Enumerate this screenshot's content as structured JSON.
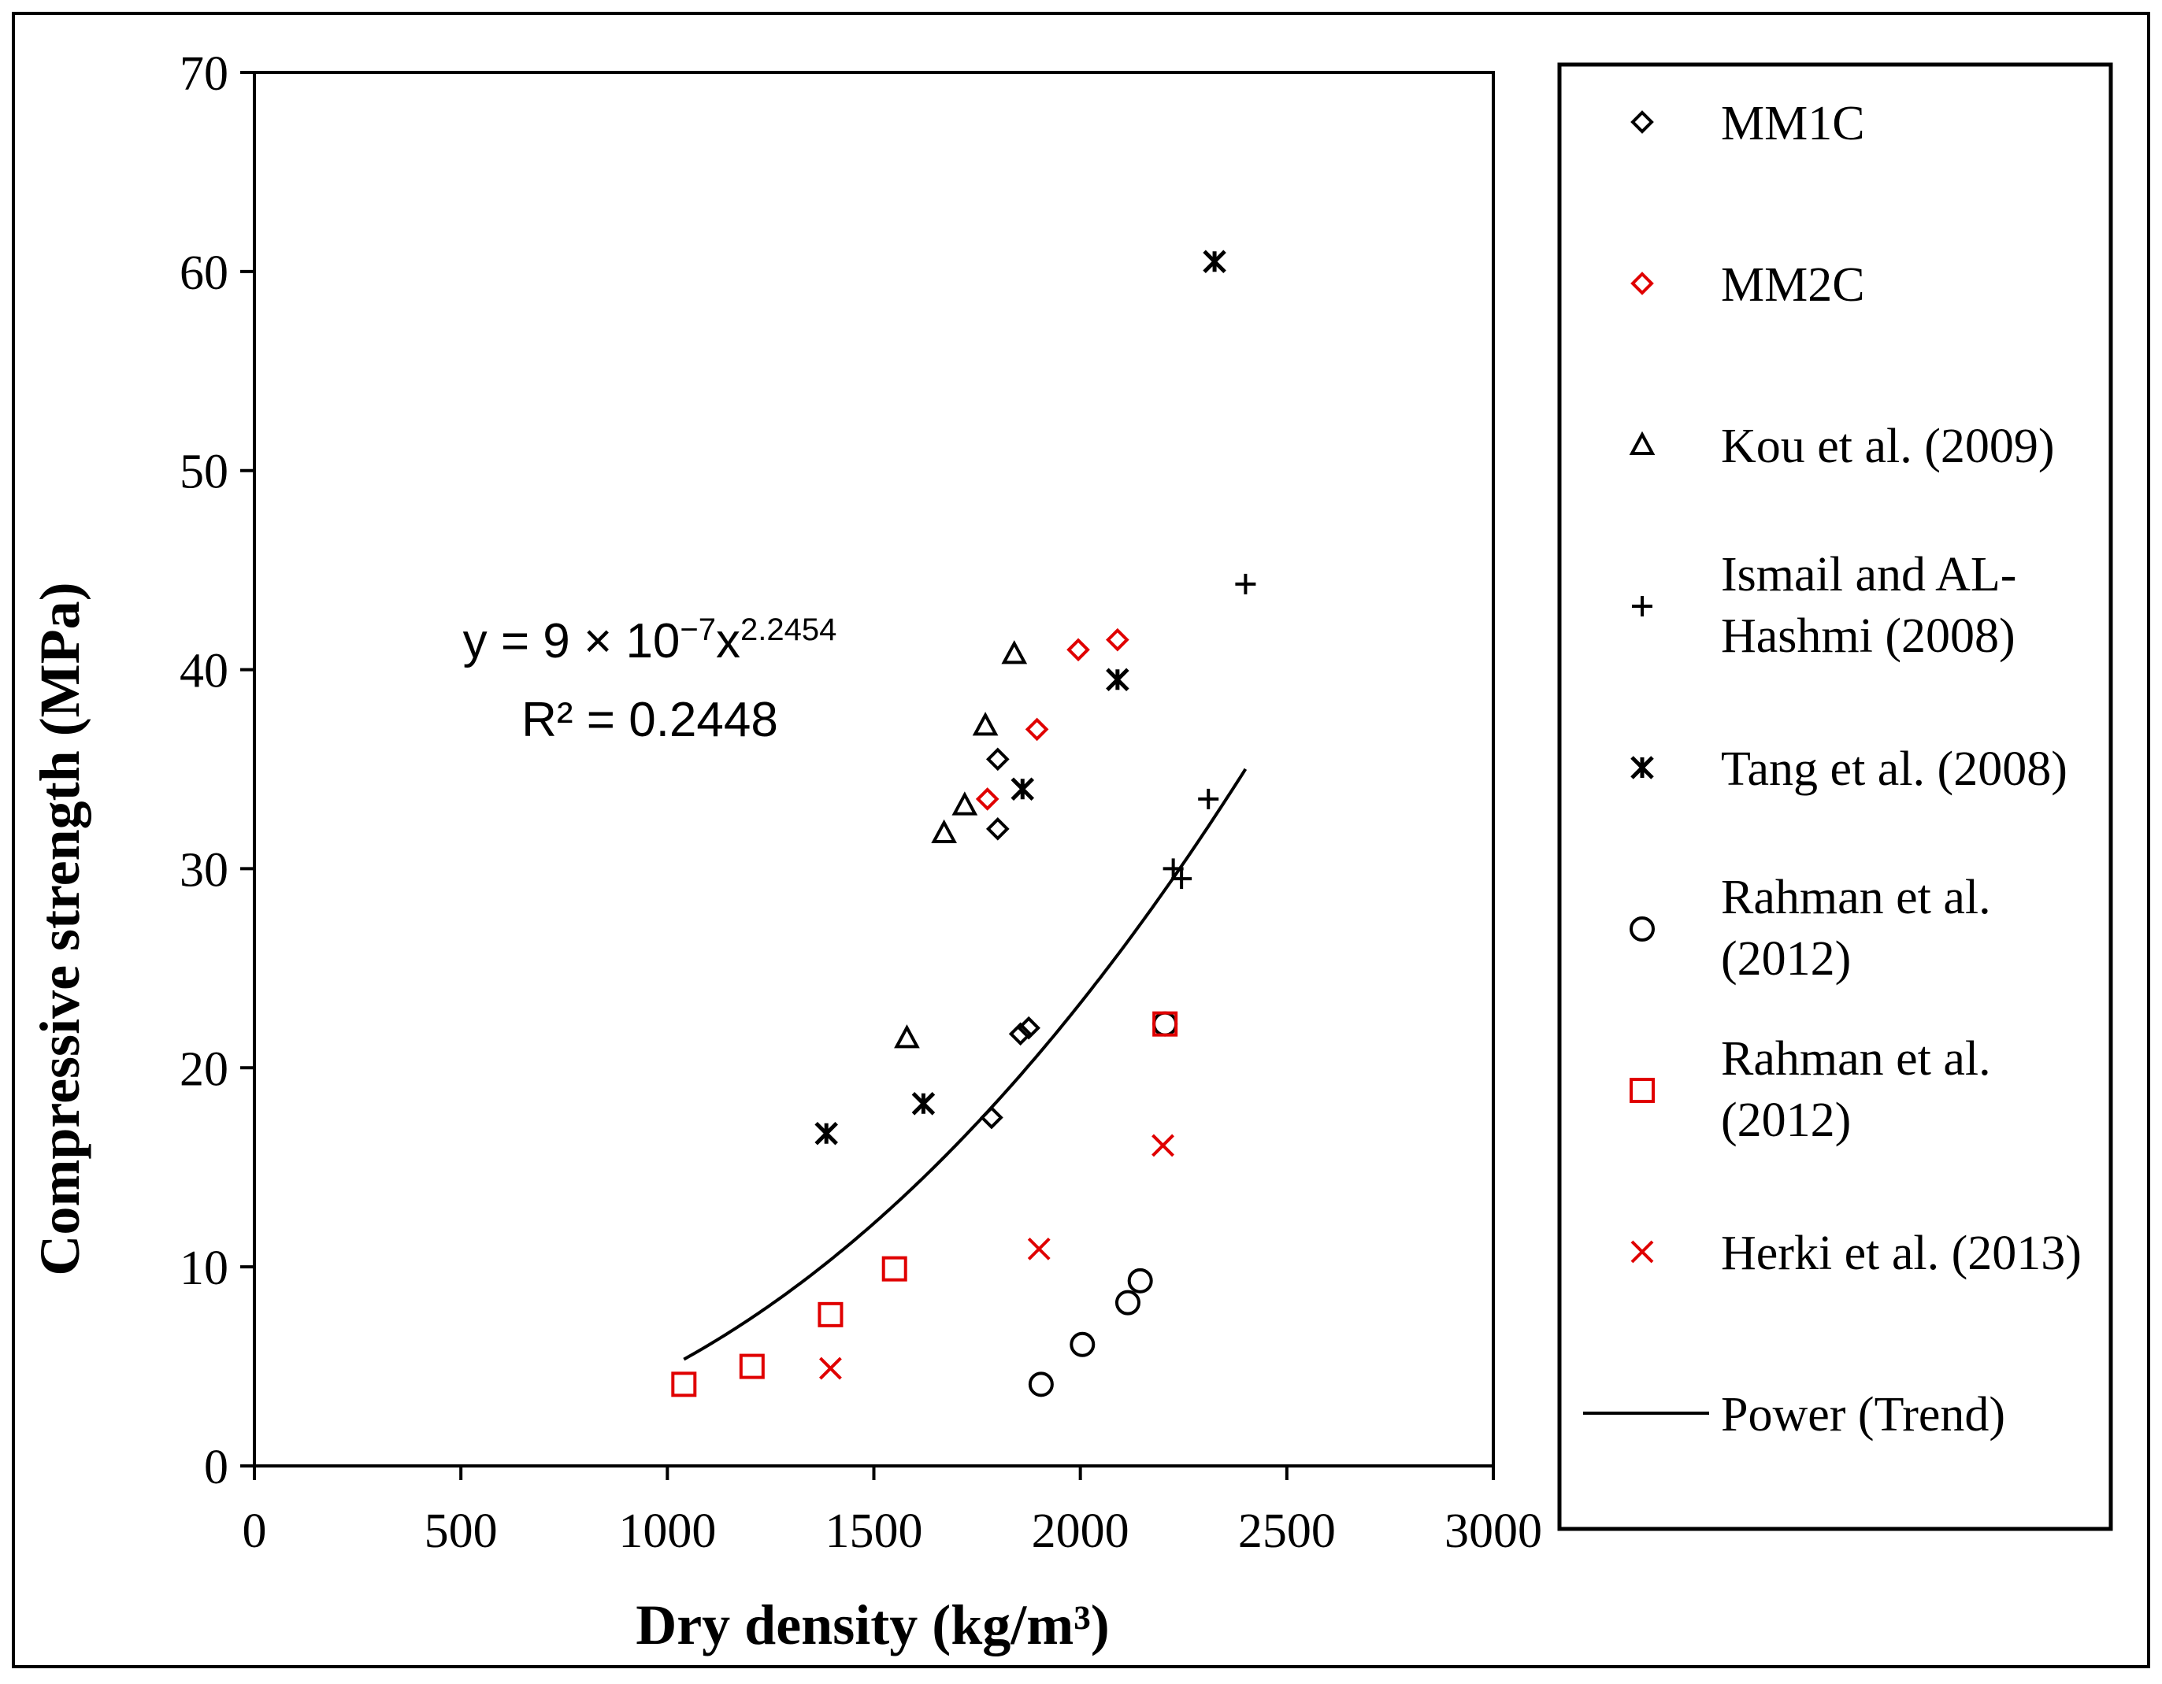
{
  "chart_data": {
    "type": "scatter",
    "xlabel": "Dry density (kg/m³)",
    "ylabel": "Compressive strength (MPa)",
    "xlim": [
      0,
      3000
    ],
    "ylim": [
      0,
      70
    ],
    "x_ticks": [
      0,
      500,
      1000,
      1500,
      2000,
      2500,
      3000
    ],
    "y_ticks": [
      0,
      10,
      20,
      30,
      40,
      50,
      60,
      70
    ],
    "x_tick_labels": [
      "0",
      "500",
      "1000",
      "1500",
      "2000",
      "2500",
      "3000"
    ],
    "y_tick_labels": [
      "0",
      "10",
      "20",
      "30",
      "40",
      "50",
      "60",
      "70"
    ],
    "grid": false,
    "legend_position": "right",
    "series": [
      {
        "name": "MM1C",
        "marker": "diamond",
        "color": "#000000",
        "points": [
          [
            1800,
            35.5
          ],
          [
            1800,
            32
          ],
          [
            1855,
            21.7
          ],
          [
            1875,
            22
          ],
          [
            1785,
            17.5
          ]
        ]
      },
      {
        "name": "MM2C",
        "marker": "diamond",
        "color": "#e00000",
        "points": [
          [
            2090,
            41.5
          ],
          [
            1995,
            41
          ],
          [
            1895,
            37
          ],
          [
            1775,
            33.5
          ]
        ]
      },
      {
        "name": "Kou et al. (2009)",
        "marker": "triangle",
        "color": "#000000",
        "points": [
          [
            1840,
            40.8
          ],
          [
            1770,
            37.2
          ],
          [
            1720,
            33.2
          ],
          [
            1670,
            31.8
          ],
          [
            1580,
            21.5
          ]
        ]
      },
      {
        "name": "Ismail and AL-Hashmi (2008)",
        "label_lines": [
          "Ismail and AL-",
          "Hashmi (2008)"
        ],
        "marker": "plus",
        "color": "#000000",
        "points": [
          [
            2400,
            44.3
          ],
          [
            2310,
            33.5
          ],
          [
            2225,
            30
          ],
          [
            2245,
            29.5
          ]
        ]
      },
      {
        "name": "Tang et al. (2008)",
        "marker": "asterisk",
        "color": "#000000",
        "points": [
          [
            2325,
            60.5
          ],
          [
            2090,
            39.5
          ],
          [
            1860,
            34
          ],
          [
            1620,
            18.2
          ],
          [
            1385,
            16.7
          ]
        ]
      },
      {
        "name": "Rahman et al. (2012)",
        "label_lines": [
          "Rahman et al.",
          "(2012)"
        ],
        "marker": "circle",
        "color": "#000000",
        "points": [
          [
            1905,
            4.1
          ],
          [
            2005,
            6.1
          ],
          [
            2115,
            8.2
          ],
          [
            2145,
            9.3
          ],
          [
            2205,
            22.2
          ]
        ]
      },
      {
        "name": "Rahman et al. (2012)",
        "label_lines": [
          "Rahman et al.",
          "(2012)"
        ],
        "marker": "square",
        "color": "#e00000",
        "points": [
          [
            1040,
            4.1
          ],
          [
            1205,
            5
          ],
          [
            1395,
            7.6
          ],
          [
            1550,
            9.9
          ],
          [
            2205,
            22.2
          ]
        ]
      },
      {
        "name": "Herki et al. (2013)",
        "marker": "x",
        "color": "#e00000",
        "points": [
          [
            1395,
            4.9
          ],
          [
            1900,
            10.9
          ],
          [
            2200,
            16.1
          ]
        ]
      }
    ],
    "trendline": {
      "name": "Power (Trend)",
      "type": "power",
      "coefficient": 9e-07,
      "exponent": 2.2454,
      "x_range": [
        1040,
        2400
      ],
      "equation": "y = 9 × 10⁻⁷x²·²⁴⁵⁴",
      "r_squared": "R² = 0.2448"
    }
  }
}
